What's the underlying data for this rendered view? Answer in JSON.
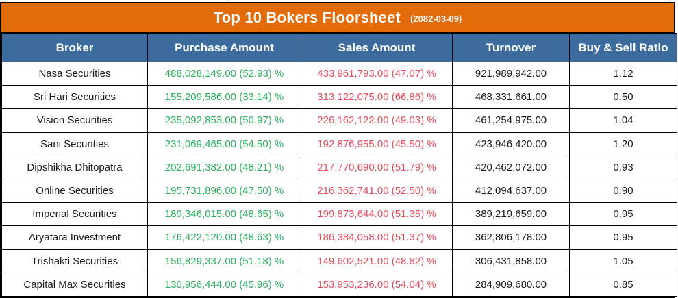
{
  "title": {
    "main": "Top 10 Bokers Floorsheet",
    "date": "(2082-03-09)"
  },
  "colors": {
    "banner_orange": "#e26b0a",
    "header_blue": "#3c6c9d",
    "purchase_green": "#28b05c",
    "sales_red": "#e84c5c",
    "grid_border": "#000000"
  },
  "chart_data": {
    "type": "table",
    "title": "Top 10 Bokers Floorsheet",
    "subtitle": "(2082-03-09)",
    "columns": [
      "Broker",
      "Purchase Amount",
      "Sales Amount",
      "Turnover",
      "Buy & Sell Ratio"
    ],
    "rows": [
      {
        "broker": "Nasa Securities",
        "purchase": "488,028,149.00 (52.93) %",
        "sales": "433,961,793.00 (47.07) %",
        "turnover": "921,989,942.00",
        "ratio": "1.12"
      },
      {
        "broker": "Sri Hari Securities",
        "purchase": "155,209,586.00 (33.14) %",
        "sales": "313,122,075.00 (66.86) %",
        "turnover": "468,331,661.00",
        "ratio": "0.50"
      },
      {
        "broker": "Vision Securities",
        "purchase": "235,092,853.00 (50.97) %",
        "sales": "226,162,122.00 (49.03) %",
        "turnover": "461,254,975.00",
        "ratio": "1.04"
      },
      {
        "broker": "Sani Securities",
        "purchase": "231,069,465.00 (54.50) %",
        "sales": "192,876,955.00 (45.50) %",
        "turnover": "423,946,420.00",
        "ratio": "1.20"
      },
      {
        "broker": "Dipshikha Dhitopatra",
        "purchase": "202,691,382.00 (48.21) %",
        "sales": "217,770,690.00 (51.79) %",
        "turnover": "420,462,072.00",
        "ratio": "0.93"
      },
      {
        "broker": "Online Securities",
        "purchase": "195,731,896.00 (47.50) %",
        "sales": "216,362,741.00 (52.50) %",
        "turnover": "412,094,637.00",
        "ratio": "0.90"
      },
      {
        "broker": "Imperial Securities",
        "purchase": "189,346,015.00 (48.65) %",
        "sales": "199,873,644.00 (51.35) %",
        "turnover": "389,219,659.00",
        "ratio": "0.95"
      },
      {
        "broker": "Aryatara Investment",
        "purchase": "176,422,120.00 (48.63) %",
        "sales": "186,384,058.00 (51.37) %",
        "turnover": "362,806,178.00",
        "ratio": "0.95"
      },
      {
        "broker": "Trishakti Securities",
        "purchase": "156,829,337.00 (51.18) %",
        "sales": "149,602,521.00 (48.82) %",
        "turnover": "306,431,858.00",
        "ratio": "1.05"
      },
      {
        "broker": "Capital Max Securities",
        "purchase": "130,956,444.00 (45.96) %",
        "sales": "153,953,236.00 (54.04) %",
        "turnover": "284,909,680.00",
        "ratio": "0.85"
      }
    ]
  }
}
